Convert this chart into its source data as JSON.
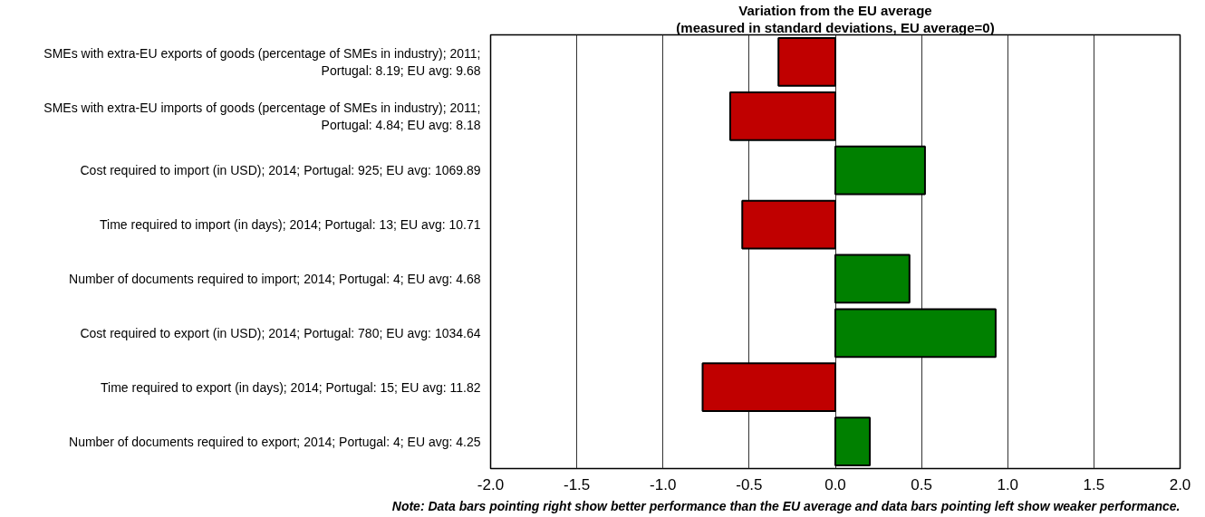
{
  "chart_data": {
    "type": "bar",
    "orientation": "horizontal",
    "title": "Variation from the EU average",
    "subtitle": "(measured in standard deviations, EU average=0)",
    "categories": [
      "SMEs with extra-EU exports of goods (percentage of SMEs in industry); 2011; Portugal: 8.19; EU avg: 9.68",
      "SMEs with extra-EU imports of goods (percentage of SMEs in industry); 2011; Portugal: 4.84; EU avg: 8.18",
      "Cost required to import (in USD); 2014; Portugal: 925; EU avg: 1069.89",
      "Time required to import (in days); 2014; Portugal: 13; EU avg: 10.71",
      "Number of documents required to import; 2014; Portugal: 4; EU avg: 4.68",
      "Cost required to export (in USD); 2014; Portugal: 780; EU avg: 1034.64",
      "Time required to export (in days); 2014; Portugal: 15; EU avg: 11.82",
      "Number of documents required to export; 2014; Portugal: 4; EU avg: 4.25"
    ],
    "values": [
      -0.33,
      -0.61,
      0.52,
      -0.54,
      0.43,
      0.93,
      -0.77,
      0.2
    ],
    "colors": [
      "#c00000",
      "#c00000",
      "#008000",
      "#c00000",
      "#008000",
      "#008000",
      "#c00000",
      "#008000"
    ],
    "xlim": [
      -2,
      2
    ],
    "xticks": [
      {
        "value": -2,
        "label": "-2.0"
      },
      {
        "value": -1.5,
        "label": "-1.5"
      },
      {
        "value": -1,
        "label": "-1.0"
      },
      {
        "value": -0.5,
        "label": "-0.5"
      },
      {
        "value": 0,
        "label": "0.0"
      },
      {
        "value": 0.5,
        "label": "0.5"
      },
      {
        "value": 1,
        "label": "1.0"
      },
      {
        "value": 1.5,
        "label": "1.5"
      },
      {
        "value": 2,
        "label": "2.0"
      }
    ],
    "grid": "x",
    "annotations": [
      "Note: Data bars pointing right show better performance than the EU average and data bars pointing left show weaker performance."
    ]
  }
}
